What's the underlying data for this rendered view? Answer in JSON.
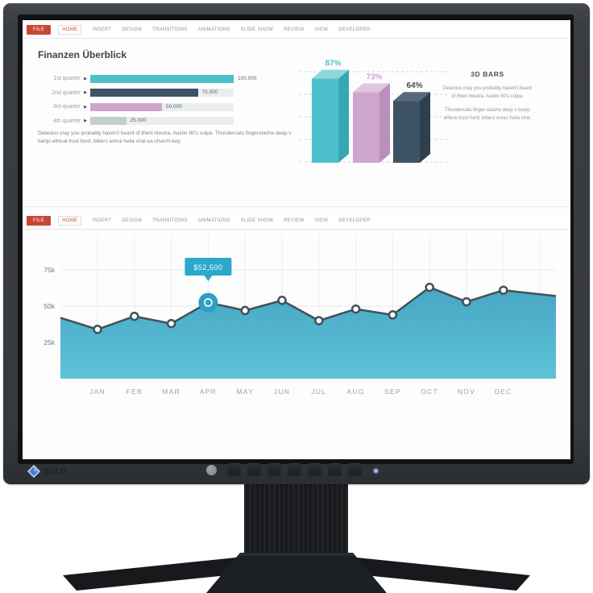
{
  "monitor": {
    "brand": "EIZO",
    "button_count": 7,
    "power_led_color": "#aab4e8"
  },
  "ribbon": {
    "file_label": "FILE",
    "active_tab": "HOME",
    "tabs": [
      "HOME",
      "INSERT",
      "DESIGN",
      "TRANSITIONS",
      "ANIMATIONS",
      "SLIDE SHOW",
      "REVIEW",
      "VIEW",
      "DEVELOPER"
    ],
    "accent": "#c74634"
  },
  "slide1": {
    "title": "Finanzen Überblick",
    "paragraph": "Delectus cray you probably haven't heard of them Neutra, Austin 90's culpa. Thundercats fingerstache deep v banjo ethical trust fund, bitters ennui hella viral ea church-key.",
    "sidebar": {
      "heading": "3D BARS",
      "para1": "Delectus cray you probably haven't heard of them Neutra, Austin 90's culpa.",
      "para2": "Thundercats finger-stache deep v banjo ethical trust fund, bitters ennui hella viral."
    }
  },
  "chart_data": [
    {
      "id": "quarter-bars",
      "type": "bar",
      "orientation": "horizontal",
      "title": "Finanzen Überblick",
      "categories": [
        "1st quarter",
        "2nd quarter",
        "3rd quarter",
        "4th quarter"
      ],
      "values": [
        100000,
        75000,
        50000,
        25000
      ],
      "value_labels": [
        "100.000",
        "75.000",
        "50.000",
        "25.000"
      ],
      "bar_colors": [
        "#4cc0ca",
        "#3d5364",
        "#cfa5ce",
        "#c5cfc9"
      ],
      "track_color": "#ebeeee",
      "xlim": [
        0,
        100000
      ]
    },
    {
      "id": "bars-3d",
      "type": "bar",
      "style": "3d",
      "title": "3D BARS",
      "values": [
        87,
        73,
        64
      ],
      "labels": [
        "87%",
        "73%",
        "64%"
      ],
      "colors": [
        "#4cc0ca",
        "#cfa5ce",
        "#3d5364"
      ],
      "top_colors": [
        "#8ed8de",
        "#e2c4e1",
        "#55697b"
      ],
      "side_colors": [
        "#37a8b3",
        "#b790bb",
        "#2e3f4d"
      ],
      "label_colors": [
        "#4cc0ca",
        "#cfa5ce",
        "#3d4f5e"
      ],
      "grid": "dashed"
    },
    {
      "id": "monthly-area",
      "type": "area",
      "categories": [
        "JAN",
        "FEB",
        "MAR",
        "APR",
        "MAY",
        "JUN",
        "JUL",
        "AUG",
        "SEP",
        "OCT",
        "NOV",
        "DEC"
      ],
      "values_thousands": [
        34,
        43,
        38,
        52.5,
        47,
        54,
        40,
        48,
        44,
        63,
        53,
        61
      ],
      "edge_start_k": 42,
      "edge_end_k": 57,
      "yticks": [
        "75k",
        "50k",
        "25k"
      ],
      "ytick_values": [
        75,
        50,
        25
      ],
      "highlight": {
        "category": "APR",
        "index": 3,
        "tooltip": "$52,500"
      },
      "line_color": "#41505b",
      "area_top_color": "#46a6c4",
      "area_bottom_color": "#5fc3d9",
      "grid": true,
      "legend": "none"
    }
  ]
}
